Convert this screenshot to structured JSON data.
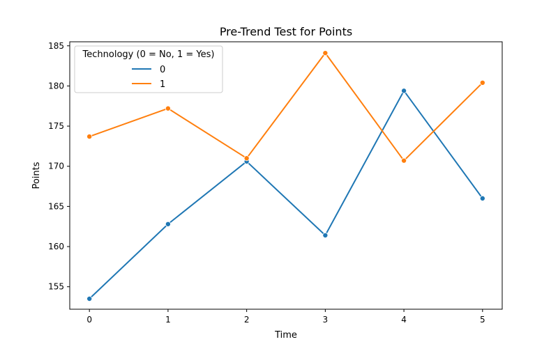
{
  "chart_data": {
    "type": "line",
    "title": "Pre-Trend Test for Points",
    "xlabel": "Time",
    "ylabel": "Points",
    "x": [
      0,
      1,
      2,
      3,
      4,
      5
    ],
    "xlim": [
      -0.25,
      5.25
    ],
    "ylim": [
      152.2,
      185.5
    ],
    "yticks": [
      155,
      160,
      165,
      170,
      175,
      180,
      185
    ],
    "xticks": [
      0,
      1,
      2,
      3,
      4,
      5
    ],
    "grid": false,
    "legend": {
      "title": "Technology (0 = No, 1 = Yes)",
      "placement": "top-left"
    },
    "series": [
      {
        "name": "0",
        "color": "#1f77b4",
        "values": [
          153.5,
          162.8,
          170.6,
          161.4,
          179.4,
          166.0
        ]
      },
      {
        "name": "1",
        "color": "#ff7f0e",
        "values": [
          173.7,
          177.2,
          171.0,
          184.1,
          170.7,
          180.4
        ]
      }
    ]
  }
}
